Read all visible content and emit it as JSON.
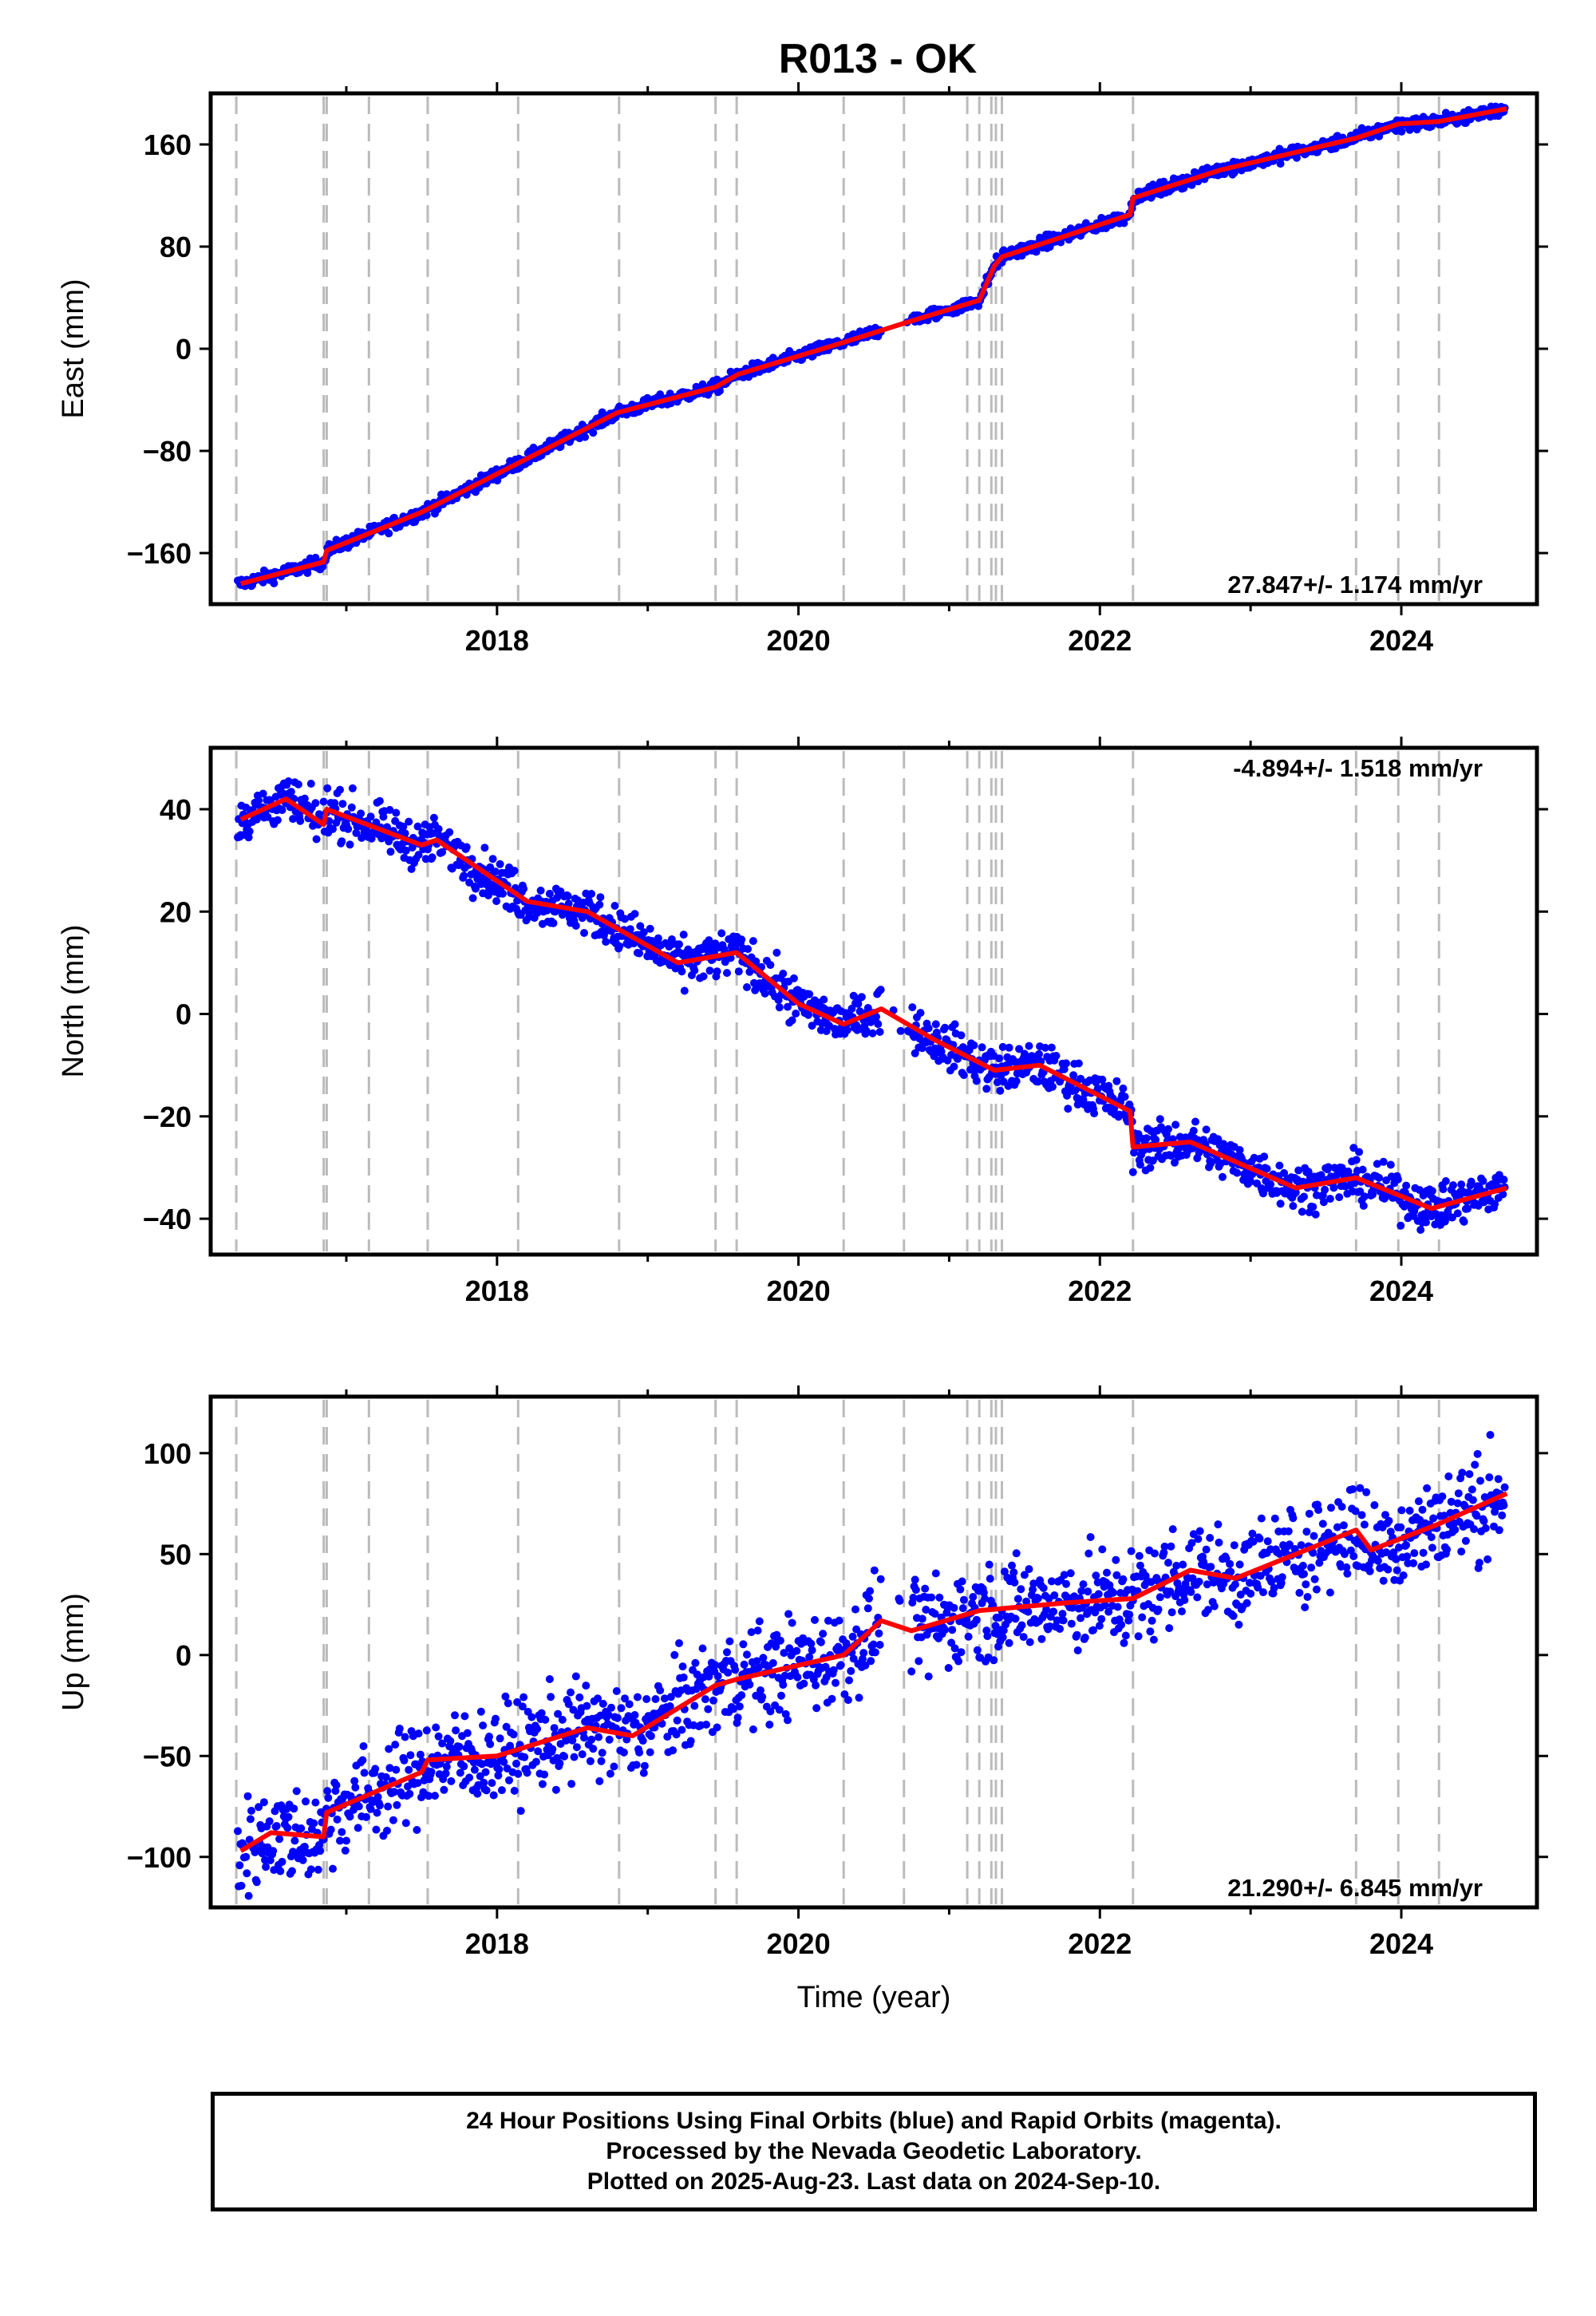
{
  "title": "R013 - OK",
  "x_axis_label": "Time (year)",
  "footer": {
    "line1": "24 Hour Positions Using Final Orbits (blue) and Rapid Orbits (magenta).",
    "line2": "Processed by the Nevada Geodetic Laboratory.",
    "line3": "Plotted on 2025-Aug-23. Last data on 2024-Sep-10."
  },
  "colors": {
    "data_points": "#0000ff",
    "model_line": "#ff0000",
    "step_lines": "#bbbbbb"
  },
  "chart_data": [
    {
      "type": "scatter",
      "name": "east",
      "ylabel": "East (mm)",
      "rate": "27.847+/- 1.174 mm/yr",
      "xlim": [
        2016.1,
        2024.9
      ],
      "ylim": [
        -200,
        200
      ],
      "yticks": [
        -160,
        -80,
        0,
        80,
        160
      ],
      "xticks": [
        2018,
        2020,
        2022,
        2024
      ],
      "steps": [
        2016.27,
        2016.85,
        2016.87,
        2017.15,
        2017.54,
        2018.14,
        2018.81,
        2019.45,
        2019.59,
        2020.3,
        2020.7,
        2021.12,
        2021.2,
        2021.28,
        2021.31,
        2021.35,
        2022.22,
        2023.7,
        2023.98,
        2024.25
      ],
      "series": [
        {
          "name": "model",
          "x": [
            2016.3,
            2016.85,
            2016.87,
            2017.5,
            2018.0,
            2018.8,
            2019.45,
            2019.6,
            2020.3,
            2020.7,
            2021.2,
            2021.3,
            2021.35,
            2022.2,
            2022.22,
            2022.8,
            2023.7,
            2023.98,
            2024.25,
            2024.7
          ],
          "y": [
            -184,
            -167,
            -158,
            -128,
            -98,
            -50,
            -30,
            -20,
            5,
            20,
            38,
            65,
            72,
            105,
            118,
            140,
            165,
            176,
            178,
            188
          ]
        }
      ]
    },
    {
      "type": "scatter",
      "name": "north",
      "ylabel": "North (mm)",
      "rate": "-4.894+/- 1.518 mm/yr",
      "xlim": [
        2016.1,
        2024.9
      ],
      "ylim": [
        -47,
        52
      ],
      "yticks": [
        -40,
        -20,
        0,
        20,
        40
      ],
      "xticks": [
        2018,
        2020,
        2022,
        2024
      ],
      "steps": [
        2016.27,
        2016.85,
        2016.87,
        2017.15,
        2017.54,
        2018.14,
        2018.81,
        2019.45,
        2019.59,
        2020.3,
        2020.7,
        2021.12,
        2021.2,
        2021.28,
        2021.31,
        2021.35,
        2022.22,
        2023.7,
        2023.98,
        2024.25
      ],
      "series": [
        {
          "name": "model",
          "x": [
            2016.3,
            2016.6,
            2016.85,
            2016.87,
            2017.5,
            2017.6,
            2018.2,
            2018.6,
            2019.2,
            2019.59,
            2020.0,
            2020.3,
            2020.55,
            2020.9,
            2021.3,
            2021.6,
            2022.2,
            2022.22,
            2022.6,
            2023.3,
            2023.7,
            2024.2,
            2024.7
          ],
          "y": [
            38,
            42,
            37,
            40,
            33,
            34,
            22,
            20,
            10,
            12,
            2,
            -2,
            1,
            -5,
            -11,
            -10,
            -19,
            -26,
            -25,
            -34,
            -32,
            -38,
            -34
          ]
        }
      ]
    },
    {
      "type": "scatter",
      "name": "up",
      "ylabel": "Up (mm)",
      "rate": "21.290+/- 6.845 mm/yr",
      "xlim": [
        2016.1,
        2024.9
      ],
      "ylim": [
        -125,
        128
      ],
      "yticks": [
        -100,
        -50,
        0,
        50,
        100
      ],
      "xticks": [
        2018,
        2020,
        2022,
        2024
      ],
      "steps": [
        2016.27,
        2016.85,
        2016.87,
        2017.15,
        2017.54,
        2018.14,
        2018.81,
        2019.45,
        2019.59,
        2020.3,
        2020.7,
        2021.12,
        2021.2,
        2021.28,
        2021.31,
        2021.35,
        2022.22,
        2023.7,
        2023.98,
        2024.25
      ],
      "series": [
        {
          "name": "model",
          "x": [
            2016.3,
            2016.5,
            2016.85,
            2016.87,
            2017.5,
            2017.54,
            2018.0,
            2018.6,
            2018.9,
            2019.45,
            2019.59,
            2020.3,
            2020.55,
            2020.75,
            2021.2,
            2021.8,
            2022.22,
            2022.6,
            2022.9,
            2023.7,
            2023.8,
            2024.25,
            2024.7
          ],
          "y": [
            -97,
            -88,
            -90,
            -78,
            -58,
            -52,
            -50,
            -36,
            -40,
            -15,
            -12,
            0,
            17,
            12,
            22,
            26,
            28,
            42,
            38,
            62,
            52,
            65,
            80
          ]
        }
      ]
    }
  ]
}
